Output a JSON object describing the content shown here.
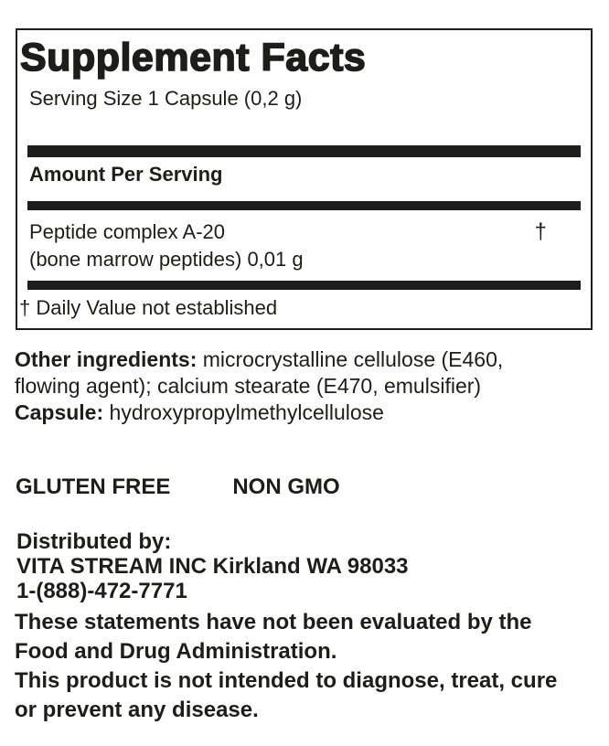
{
  "panel": {
    "title": "Supplement Facts",
    "serving_size": "Serving Size 1 Capsule (0,2 g)",
    "amount_header": "Amount Per Serving",
    "ingredient": {
      "name": "Peptide complex A-20",
      "detail": "(bone marrow peptides) 0,01 g",
      "daily_value_symbol": "†"
    },
    "footnote": "† Daily Value not established"
  },
  "other_ingredients": {
    "line1_label": "Other ingredients:",
    "line1_text": " microcrystalline cellulose (E460,",
    "line2_text": "flowing agent); calcium stearate (E470, emulsifier)",
    "line3_label": "Capsule:",
    "line3_text": " hydroxypropylmethylcellulose"
  },
  "badges": {
    "gluten_free": "GLUTEN FREE",
    "non_gmo": "NON GMO"
  },
  "distributor": {
    "label": "Distributed by:",
    "company": "VITA STREAM INC Kirkland WA 98033",
    "phone": "1-(888)-472-7771"
  },
  "disclaimers": {
    "line1": "These statements have not been evaluated by the",
    "line2": "Food and Drug Administration.",
    "line3": "This product is not intended to diagnose, treat, cure",
    "line4": "or prevent any disease."
  },
  "colors": {
    "text": "#1d1d1b",
    "bar": "#1d1d1b",
    "border": "#1d1d1b",
    "background": "#ffffff"
  }
}
